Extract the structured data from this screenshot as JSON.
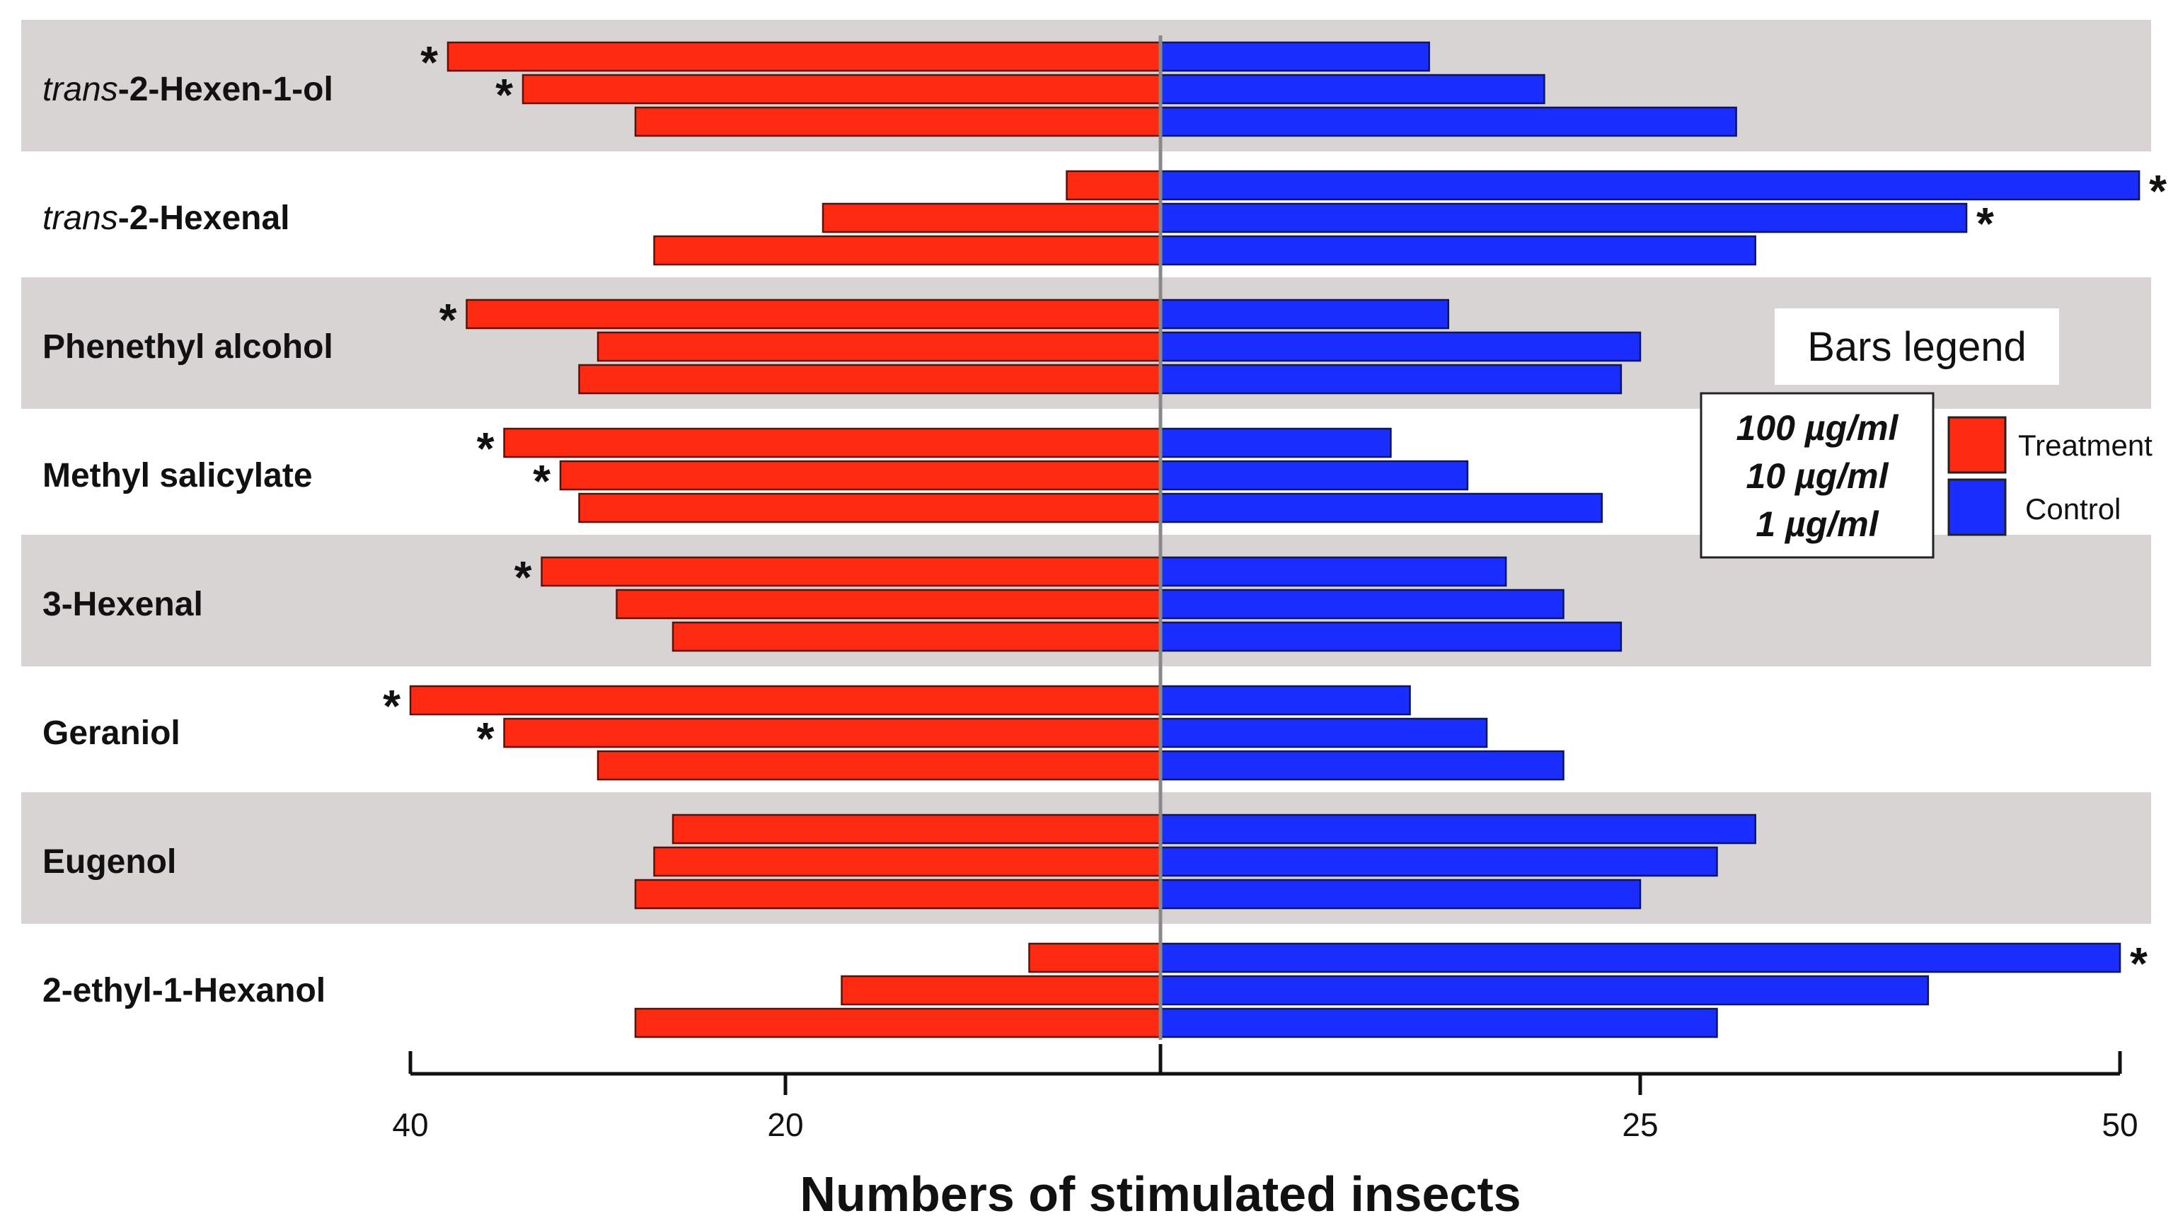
{
  "chart_data": {
    "type": "bar",
    "orientation": "horizontal-diverging",
    "xlabel": "Numbers of stimulated insects",
    "left_axis": {
      "range": [
        0,
        40
      ],
      "ticks": [
        40,
        20
      ]
    },
    "right_axis": {
      "range": [
        0,
        50
      ],
      "ticks": [
        25,
        50
      ]
    },
    "concentrations": [
      "100 µg/ml",
      "10 µg/ml",
      "1 µg/ml"
    ],
    "legend": {
      "title": "Bars legend",
      "concentrations": [
        "100 µg/ml",
        "10 µg/ml",
        "1 µg/ml"
      ],
      "series": [
        {
          "name": "Treatment",
          "color": "#ff2a12"
        },
        {
          "name": "Control",
          "color": "#1a2eff"
        }
      ]
    },
    "colors": {
      "treatment": "#ff2a12",
      "control": "#1a2eff",
      "band": "#d8d4d4"
    },
    "categories": [
      {
        "prefix": "trans",
        "name": "-2-Hexen-1-ol",
        "shaded": true,
        "treatment": [
          38,
          34,
          28
        ],
        "control": [
          14,
          20,
          30
        ],
        "treatment_sig": [
          true,
          true,
          false
        ],
        "control_sig": [
          false,
          false,
          false
        ]
      },
      {
        "prefix": "trans",
        "name": "-2-Hexenal",
        "shaded": false,
        "treatment": [
          5,
          18,
          27
        ],
        "control": [
          51,
          42,
          31
        ],
        "treatment_sig": [
          false,
          false,
          false
        ],
        "control_sig": [
          true,
          true,
          false
        ]
      },
      {
        "prefix": "",
        "name": "Phenethyl alcohol",
        "shaded": true,
        "treatment": [
          37,
          30,
          31
        ],
        "control": [
          15,
          25,
          24
        ],
        "treatment_sig": [
          true,
          false,
          false
        ],
        "control_sig": [
          false,
          false,
          false
        ]
      },
      {
        "prefix": "",
        "name": "Methyl salicylate",
        "shaded": false,
        "treatment": [
          35,
          32,
          31
        ],
        "control": [
          12,
          16,
          23
        ],
        "treatment_sig": [
          true,
          true,
          false
        ],
        "control_sig": [
          false,
          false,
          false
        ]
      },
      {
        "prefix": "",
        "name": "3-Hexenal",
        "shaded": true,
        "treatment": [
          33,
          29,
          26
        ],
        "control": [
          18,
          21,
          24
        ],
        "treatment_sig": [
          true,
          false,
          false
        ],
        "control_sig": [
          false,
          false,
          false
        ]
      },
      {
        "prefix": "",
        "name": "Geraniol",
        "shaded": false,
        "treatment": [
          40,
          35,
          30
        ],
        "control": [
          13,
          17,
          21
        ],
        "treatment_sig": [
          true,
          true,
          false
        ],
        "control_sig": [
          false,
          false,
          false
        ]
      },
      {
        "prefix": "",
        "name": "Eugenol",
        "shaded": true,
        "treatment": [
          26,
          27,
          28
        ],
        "control": [
          31,
          29,
          25
        ],
        "treatment_sig": [
          false,
          false,
          false
        ],
        "control_sig": [
          false,
          false,
          false
        ]
      },
      {
        "prefix": "",
        "name": "2-ethyl-1-Hexanol",
        "shaded": false,
        "treatment": [
          7,
          17,
          28
        ],
        "control": [
          50,
          40,
          29
        ],
        "treatment_sig": [
          false,
          false,
          false
        ],
        "control_sig": [
          true,
          false,
          false
        ]
      }
    ],
    "significance_marker": "*"
  }
}
